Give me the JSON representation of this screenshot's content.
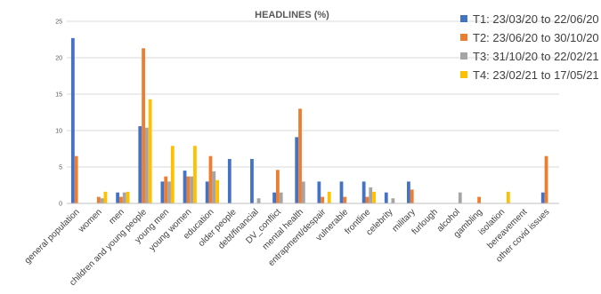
{
  "chart_data": {
    "type": "bar",
    "title": "HEADLINES (%)",
    "xlabel": "",
    "ylabel": "",
    "ylim": [
      0,
      25
    ],
    "yticks": [
      0,
      5,
      10,
      15,
      20,
      25
    ],
    "grid": true,
    "legend_position": "right",
    "categories": [
      "general population",
      "women",
      "men",
      "children and young people",
      "young men",
      "young women",
      "education",
      "older people",
      "debt/financial",
      "DV_conflict",
      "mental health",
      "entrapment/despair",
      "vulnerable",
      "frontline",
      "celebrity",
      "military",
      "furlough",
      "alcohol",
      "gambling",
      "isolation",
      "bereavement",
      "other covid issues"
    ],
    "series": [
      {
        "name": "T1: 23/03/20 to 22/06/20",
        "color": "#4472c4",
        "values": [
          22.7,
          0,
          1.5,
          10.6,
          3.0,
          4.5,
          3.0,
          6.1,
          6.1,
          1.5,
          9.1,
          3.0,
          3.0,
          3.0,
          1.5,
          3.0,
          0,
          0,
          0,
          0,
          0,
          1.5
        ]
      },
      {
        "name": "T2: 23/06/20 to 30/10/20",
        "color": "#ed7d31",
        "values": [
          6.5,
          0.9,
          0.9,
          21.3,
          3.7,
          3.7,
          6.5,
          0,
          0,
          4.6,
          13.0,
          0.9,
          0.9,
          0.9,
          0,
          1.9,
          0,
          0,
          0.9,
          0,
          0,
          6.5
        ]
      },
      {
        "name": "T3: 31/10/20 to 22/02/21",
        "color": "#a5a5a5",
        "values": [
          0,
          0.7,
          1.5,
          10.4,
          3.0,
          3.7,
          4.4,
          0,
          0.7,
          1.5,
          3.0,
          0,
          0,
          2.2,
          0.7,
          0,
          0,
          1.5,
          0,
          0,
          0,
          0
        ]
      },
      {
        "name": "T4: 23/02/21 to 17/05/21",
        "color": "#ffc000",
        "values": [
          0,
          1.6,
          1.6,
          14.3,
          7.9,
          7.9,
          3.2,
          0,
          0,
          0,
          0,
          1.6,
          0,
          1.6,
          0,
          0,
          0,
          0,
          0,
          1.6,
          0,
          0
        ]
      }
    ]
  }
}
